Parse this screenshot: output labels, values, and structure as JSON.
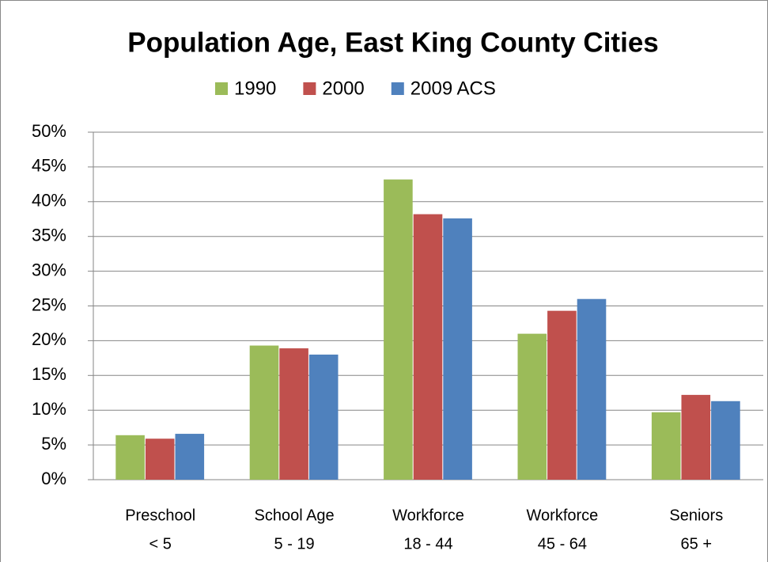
{
  "chart_data": {
    "type": "bar",
    "title": "Population Age, East King County Cities",
    "categories": [
      [
        "Preschool",
        "< 5"
      ],
      [
        "School Age",
        "5 - 19"
      ],
      [
        "Workforce",
        "18 - 44"
      ],
      [
        "Workforce",
        "45 - 64"
      ],
      [
        "Seniors",
        "65 +"
      ]
    ],
    "series": [
      {
        "name": "1990",
        "color": "#9bbb59",
        "values": [
          6.4,
          19.3,
          43.2,
          21.0,
          9.7
        ]
      },
      {
        "name": "2000",
        "color": "#c0504d",
        "values": [
          5.9,
          18.9,
          38.2,
          24.3,
          12.2
        ]
      },
      {
        "name": "2009 ACS",
        "color": "#4f81bd",
        "values": [
          6.6,
          18.0,
          37.6,
          26.0,
          11.3
        ]
      }
    ],
    "ylim": [
      0,
      50
    ],
    "yticks": [
      {
        "value": 0,
        "label": "0%"
      },
      {
        "value": 5,
        "label": "5%"
      },
      {
        "value": 10,
        "label": "10%"
      },
      {
        "value": 15,
        "label": "15%"
      },
      {
        "value": 20,
        "label": "20%"
      },
      {
        "value": 25,
        "label": "25%"
      },
      {
        "value": 30,
        "label": "30%"
      },
      {
        "value": 35,
        "label": "35%"
      },
      {
        "value": 40,
        "label": "40%"
      },
      {
        "value": 45,
        "label": "45%"
      },
      {
        "value": 50,
        "label": "50%"
      }
    ],
    "grid": true,
    "legend": "top"
  }
}
